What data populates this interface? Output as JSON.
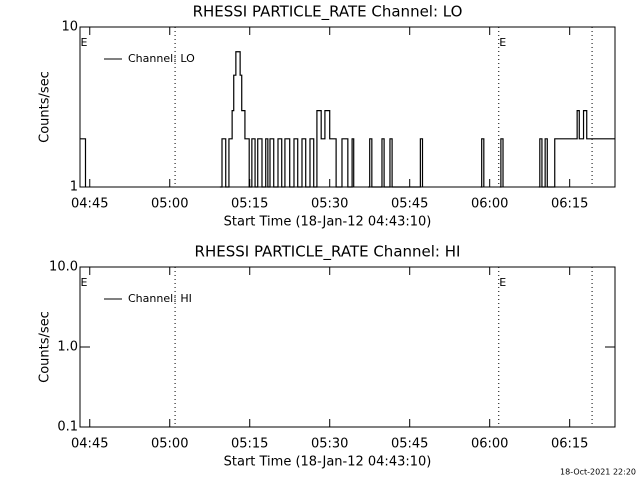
{
  "chart_data": [
    {
      "type": "line",
      "title": "RHESSI PARTICLE_RATE Channel: LO",
      "xlabel": "Start Time (18-Jan-12 04:43:10)",
      "ylabel": "Counts/sec",
      "log_y": true,
      "legend": "upper left",
      "x": [
        283.17,
        284.2,
        285.0,
        309.4,
        309.8,
        310.5,
        311.1,
        311.7,
        312.0,
        312.4,
        313.2,
        313.5,
        314.1,
        314.9,
        315.4,
        316.0,
        316.5,
        317.3,
        318.0,
        318.4,
        318.8,
        319.5,
        320.3,
        321.0,
        321.6,
        322.5,
        323.3,
        324.0,
        324.8,
        325.5,
        326.3,
        327.0,
        327.6,
        328.4,
        329.1,
        330.0,
        331.2,
        332.3,
        333.4,
        334.2,
        334.5,
        335.0,
        337.2,
        337.5,
        337.9,
        339.6,
        339.8,
        340.2,
        341.1,
        341.3,
        341.7,
        346.8,
        347.0,
        347.4,
        347.6,
        358.3,
        358.5,
        358.9,
        359.2,
        361.9,
        362.1,
        362.5,
        362.8,
        369.2,
        369.4,
        369.8,
        370.2,
        370.4,
        370.8,
        372.0,
        372.2,
        376.4,
        376.8,
        377.6,
        378.2,
        383.5
      ],
      "series": [
        {
          "name": "Channel: LO",
          "color": "#000000",
          "values": [
            2,
            1,
            null,
            1,
            2,
            1,
            2,
            3,
            5,
            7,
            5,
            3,
            2,
            1,
            2,
            1,
            2,
            1,
            2,
            1,
            2,
            1,
            2,
            1,
            2,
            1,
            2,
            1,
            2,
            1,
            2,
            1,
            3,
            2,
            3,
            2,
            1,
            2,
            1,
            2,
            1,
            null,
            1,
            2,
            1,
            1,
            2,
            1,
            1,
            2,
            1,
            1,
            2,
            1,
            null,
            1,
            2,
            1,
            null,
            1,
            2,
            1,
            null,
            1,
            2,
            1,
            1,
            2,
            1,
            1,
            2,
            3,
            2,
            3,
            2,
            2
          ]
        }
      ],
      "xlim": [
        283.17,
        383.5
      ],
      "ylim": [
        1,
        10
      ],
      "xticks": [
        {
          "value": 285,
          "label": "04:45"
        },
        {
          "value": 300,
          "label": "05:00"
        },
        {
          "value": 315,
          "label": "05:15"
        },
        {
          "value": 330,
          "label": "05:30"
        },
        {
          "value": 345,
          "label": "05:45"
        },
        {
          "value": 360,
          "label": "06:00"
        },
        {
          "value": 375,
          "label": "06:15"
        }
      ],
      "yticks": [
        1,
        10
      ],
      "vlines": [
        301.0,
        361.7,
        379.2
      ],
      "annotations": [
        {
          "text": "E",
          "x": 283.17
        },
        {
          "text": "E",
          "x": 361.7
        }
      ]
    },
    {
      "type": "line",
      "title": "RHESSI PARTICLE_RATE Channel: HI",
      "xlabel": "Start Time (18-Jan-12 04:43:10)",
      "ylabel": "Counts/sec",
      "log_y": true,
      "legend": "upper left",
      "x": [],
      "series": [
        {
          "name": "Channel: HI",
          "color": "#000000",
          "values": []
        }
      ],
      "xlim": [
        283.17,
        383.5
      ],
      "ylim": [
        0.1,
        10
      ],
      "xticks": [
        {
          "value": 285,
          "label": "04:45"
        },
        {
          "value": 300,
          "label": "05:00"
        },
        {
          "value": 315,
          "label": "05:15"
        },
        {
          "value": 330,
          "label": "05:30"
        },
        {
          "value": 345,
          "label": "05:45"
        },
        {
          "value": 360,
          "label": "06:00"
        },
        {
          "value": 375,
          "label": "06:15"
        }
      ],
      "yticks": [
        {
          "value": 0.1,
          "label": "0.1"
        },
        {
          "value": 1,
          "label": "1.0"
        },
        {
          "value": 10,
          "label": "10.0"
        }
      ],
      "vlines": [
        301.0,
        361.7,
        379.2
      ],
      "annotations": [
        {
          "text": "E",
          "x": 283.17
        },
        {
          "text": "E",
          "x": 361.7
        }
      ]
    }
  ],
  "footer": "18-Oct-2021 22:20"
}
